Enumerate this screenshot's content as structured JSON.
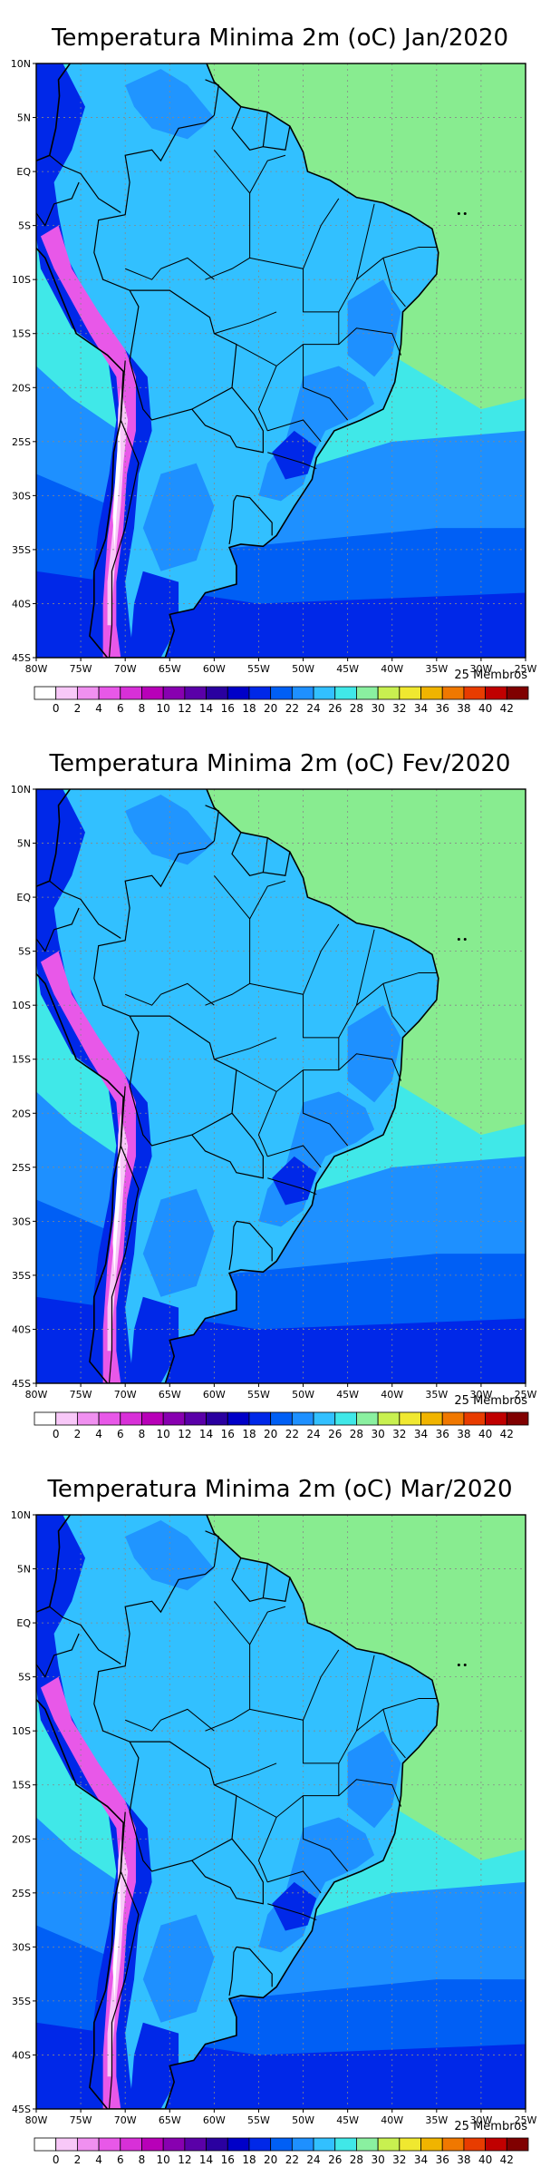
{
  "panels": [
    {
      "title": "Temperatura Minima 2m (oC) Jan/2020",
      "members": "25 Membros"
    },
    {
      "title": "Temperatura Minima 2m (oC) Fev/2020",
      "members": "25 Membros"
    },
    {
      "title": "Temperatura Minima 2m (oC) Mar/2020",
      "members": "25 Membros"
    }
  ],
  "lat_labels": [
    "10N",
    "5N",
    "EQ",
    "5S",
    "10S",
    "15S",
    "20S",
    "25S",
    "30S",
    "35S",
    "40S",
    "45S"
  ],
  "lon_labels": [
    "80W",
    "75W",
    "70W",
    "65W",
    "60W",
    "55W",
    "50W",
    "45W",
    "40W",
    "35W",
    "30W",
    "25W"
  ],
  "legend": {
    "labels": [
      "0",
      "2",
      "4",
      "6",
      "8",
      "10",
      "12",
      "14",
      "16",
      "18",
      "20",
      "22",
      "24",
      "26",
      "28",
      "30",
      "32",
      "34",
      "36",
      "38",
      "40",
      "42"
    ],
    "colors": [
      "#ffffff",
      "#f8c8f8",
      "#f090f0",
      "#e858e8",
      "#d830d8",
      "#b800b8",
      "#8800b0",
      "#5a00a8",
      "#2a00a0",
      "#0000c8",
      "#0028e8",
      "#005ff5",
      "#1e90ff",
      "#32c0ff",
      "#40e8e8",
      "#8af0a0",
      "#c8f050",
      "#f0e830",
      "#f0b400",
      "#f07800",
      "#e83c00",
      "#c00000",
      "#800000"
    ]
  },
  "map_colors": {
    "ocean_warm": "#88ec90",
    "ocean_mid": "#40e8e8",
    "ocean_cool": "#1e90ff",
    "ocean_cold": "#005ff5",
    "ocean_coldest": "#0028e8",
    "land_main": "#32c0ff",
    "land_cool": "#1e90ff",
    "land_cold": "#0028e8",
    "andes_mid": "#e858e8",
    "andes_high": "#f8c8f8",
    "andes_peak": "#ffffff"
  }
}
